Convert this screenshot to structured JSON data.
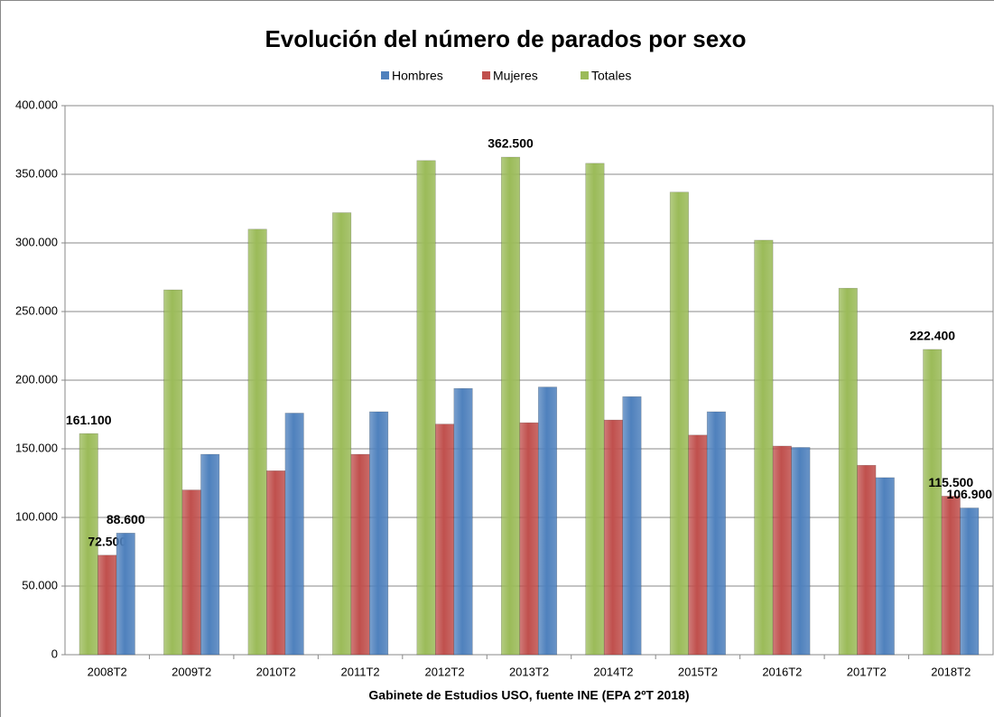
{
  "chart_data": {
    "type": "bar",
    "title": "Evolución del número de parados por sexo",
    "x_label": "Gabinete de Estudios USO, fuente  INE (EPA 2ºT 2018)",
    "categories": [
      "2008T2",
      "2009T2",
      "2010T2",
      "2011T2",
      "2012T2",
      "2013T2",
      "2014T2",
      "2015T2",
      "2016T2",
      "2017T2",
      "2018T2"
    ],
    "series": [
      {
        "name": "Hombres",
        "color": "#4f81bd",
        "values": [
          88600,
          146000,
          176000,
          177000,
          194000,
          195000,
          188000,
          177000,
          151000,
          129000,
          106900
        ],
        "value_labels": [
          "88.600",
          null,
          null,
          null,
          null,
          null,
          null,
          null,
          null,
          null,
          "106.900"
        ]
      },
      {
        "name": "Mujeres",
        "color": "#c0504d",
        "values": [
          72500,
          120000,
          134000,
          146000,
          168000,
          169000,
          171000,
          160000,
          152000,
          138000,
          115500
        ],
        "value_labels": [
          "72.500",
          null,
          null,
          null,
          null,
          null,
          null,
          null,
          null,
          null,
          "115.500"
        ]
      },
      {
        "name": "Totales",
        "color": "#9bbb59",
        "values": [
          161100,
          265800,
          310000,
          322000,
          360000,
          362500,
          358000,
          337000,
          302000,
          267000,
          222400
        ],
        "value_labels": [
          "161.100",
          null,
          null,
          null,
          null,
          "362.500",
          null,
          null,
          null,
          null,
          "222.400"
        ]
      }
    ],
    "ylim": [
      0,
      400000
    ],
    "yticks": [
      0,
      {
        "value": 50000,
        "label": "50.000"
      },
      {
        "value": 100000,
        "label": "100.000"
      },
      {
        "value": 150000,
        "label": "150.000"
      },
      {
        "value": 200000,
        "label": "200.000"
      },
      {
        "value": 250000,
        "label": "250.000"
      },
      {
        "value": 300000,
        "label": "300.000"
      },
      {
        "value": 350000,
        "label": "350.000"
      },
      {
        "value": 400000,
        "label": "400.000"
      }
    ],
    "grid": true,
    "legend": "top"
  }
}
